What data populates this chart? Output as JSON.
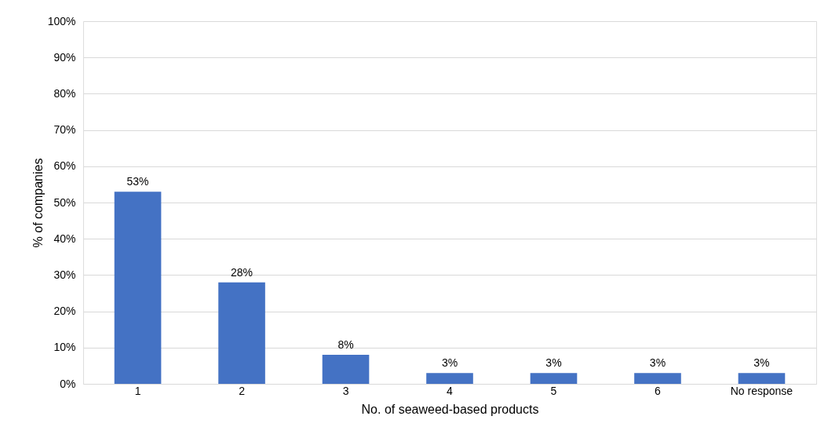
{
  "chart_data": {
    "type": "bar",
    "xlabel": "No. of seaweed-based products",
    "ylabel": "% of companies",
    "categories": [
      "1",
      "2",
      "3",
      "4",
      "5",
      "6",
      "No response"
    ],
    "values": [
      53,
      28,
      8,
      3,
      3,
      3,
      3
    ],
    "value_labels": [
      "53%",
      "28%",
      "8%",
      "3%",
      "3%",
      "3%",
      "3%"
    ],
    "color": "#4472c4",
    "ylim": [
      0,
      100
    ],
    "yticks": [
      {
        "value": 0,
        "label": "0%"
      },
      {
        "value": 10,
        "label": "10%"
      },
      {
        "value": 20,
        "label": "20%"
      },
      {
        "value": 30,
        "label": "30%"
      },
      {
        "value": 40,
        "label": "40%"
      },
      {
        "value": 50,
        "label": "50%"
      },
      {
        "value": 60,
        "label": "60%"
      },
      {
        "value": 70,
        "label": "70%"
      },
      {
        "value": 80,
        "label": "80%"
      },
      {
        "value": 90,
        "label": "90%"
      },
      {
        "value": 100,
        "label": "100%"
      }
    ],
    "grid": "y"
  }
}
